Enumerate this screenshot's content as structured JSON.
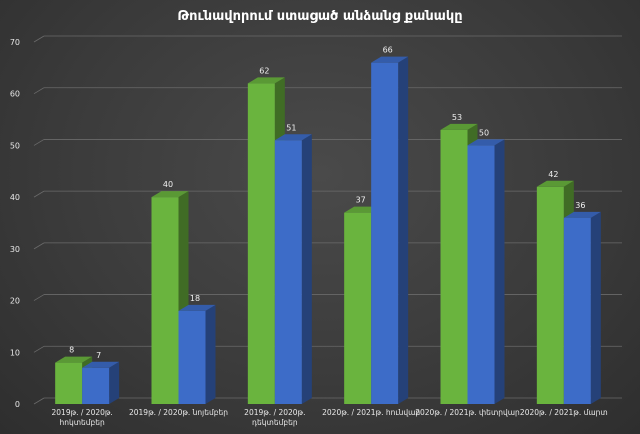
{
  "chart_data": {
    "type": "bar",
    "title": "Թունավորում ստացած անձանց քանակը",
    "categories": [
      [
        "2019թ. / 2020թ.",
        "հոկտեմբեր"
      ],
      [
        "2019թ. / 2020թ. նոյեմբեր"
      ],
      [
        "2019թ. / 2020թ.",
        "դեկտեմբեր"
      ],
      [
        "2020թ. / 2021թ. հունվար"
      ],
      [
        "2020թ. / 2021թ. փետրվար"
      ],
      [
        "2020թ. / 2021թ. մարտ"
      ]
    ],
    "series": [
      {
        "values": [
          8,
          40,
          62,
          37,
          53,
          42
        ],
        "color": "#6ab43e"
      },
      {
        "values": [
          7,
          18,
          51,
          66,
          50,
          36
        ],
        "color": "#3d6cc8"
      }
    ],
    "yticks": [
      0,
      10,
      20,
      30,
      40,
      50,
      60,
      70
    ],
    "ylim": [
      0,
      70
    ],
    "grid": true,
    "legend": "none",
    "xlabel": "",
    "ylabel": ""
  }
}
